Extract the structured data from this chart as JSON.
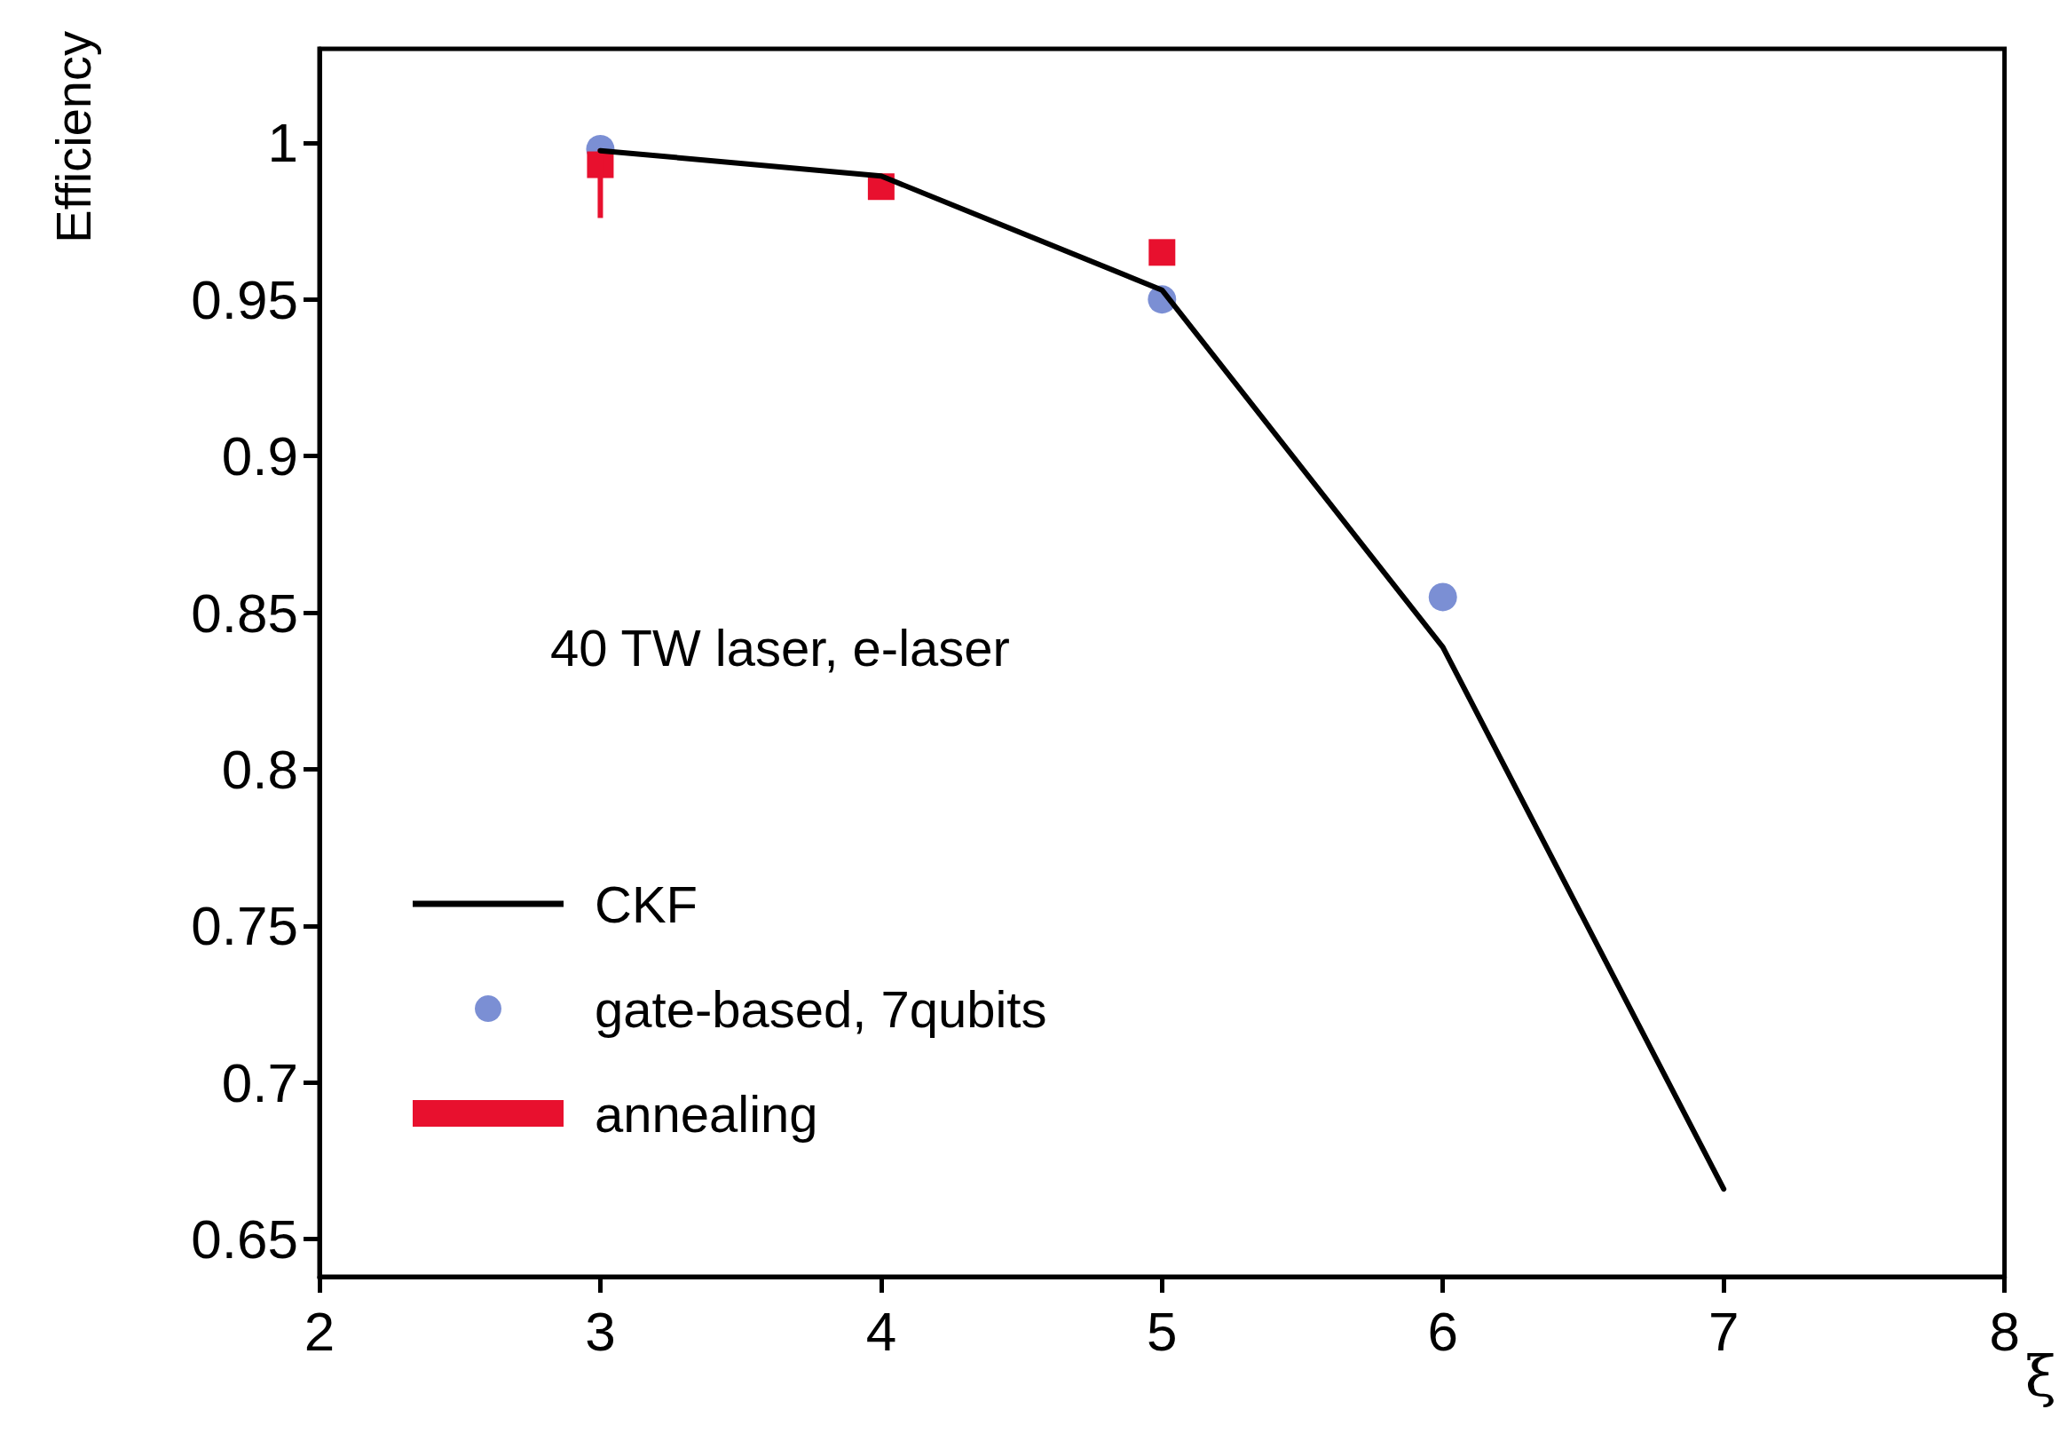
{
  "chart_data": {
    "type": "scatter",
    "ylabel": "Efficiency",
    "xlabel": "ξ",
    "legend_title": "40 TW laser, e-laser",
    "xlim": [
      2,
      8
    ],
    "xticks": [
      2,
      3,
      4,
      5,
      6,
      7,
      8
    ],
    "ylim": [
      0.638,
      1.03
    ],
    "yticks": [
      0.65,
      0.7,
      0.75,
      0.8,
      0.85,
      0.9,
      0.95,
      {
        "value": 1,
        "label": "1"
      }
    ],
    "legend": "bottom left",
    "grid": false,
    "series": [
      {
        "name": "CKF",
        "type": "line",
        "color": "#000000",
        "marker": "none",
        "line_style": "solid",
        "x": [
          3,
          4,
          5,
          6,
          7
        ],
        "values": [
          0.9975,
          0.9894,
          0.953,
          0.839,
          0.666
        ]
      },
      {
        "name": "gate-based, 7qubits",
        "type": "scatter",
        "color": "#7b8fd4",
        "marker": "circle",
        "x": [
          3,
          4,
          5,
          6
        ],
        "values": [
          0.998,
          null,
          0.95,
          0.855
        ]
      },
      {
        "name": "annealing",
        "color": "#e8102e",
        "marker": "square",
        "x": [
          3,
          4,
          5
        ],
        "values": [
          0.993,
          0.986,
          0.965
        ],
        "errors": [
          [
            0.976,
            0.998
          ],
          null,
          null
        ]
      }
    ]
  }
}
